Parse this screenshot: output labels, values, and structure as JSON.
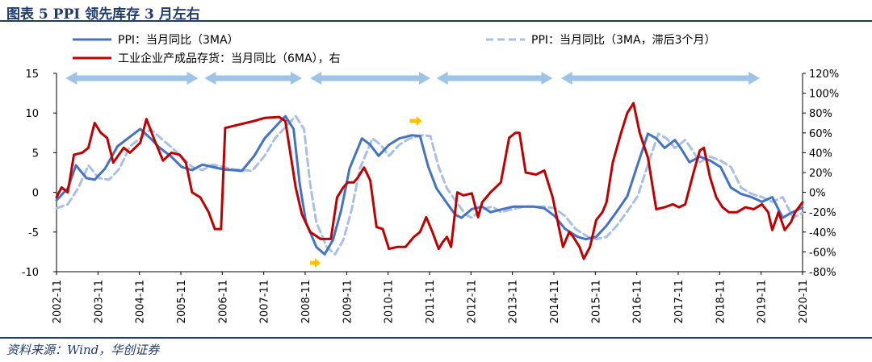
{
  "header": {
    "title": "图表 5   PPI 领先库存 3 月左右"
  },
  "footer": {
    "source": "资料来源：Wind，华创证券"
  },
  "chart_data": {
    "type": "line",
    "title": "PPI 领先库存 3 月左右",
    "x_tick_labels": [
      "2002-11",
      "2003-11",
      "2004-11",
      "2005-11",
      "2006-11",
      "2007-11",
      "2008-11",
      "2009-11",
      "2010-11",
      "2011-11",
      "2012-11",
      "2013-11",
      "2014-11",
      "2015-11",
      "2016-11",
      "2017-11",
      "2018-11",
      "2019-11",
      "2020-11"
    ],
    "x_range": [
      2002.83,
      2020.83
    ],
    "y_left": {
      "range": [
        -10,
        15
      ],
      "ticks": [
        "15",
        "10",
        "5",
        "0",
        "-5",
        "-10"
      ]
    },
    "y_right": {
      "range": [
        -80,
        120
      ],
      "ticks": [
        "120%",
        "100%",
        "80%",
        "60%",
        "40%",
        "20%",
        "0%",
        "-20%",
        "-40%",
        "-60%",
        "-80%"
      ]
    },
    "grid": false,
    "legend_position": "top",
    "series": [
      {
        "name": "PPI：当月同比（3MA）",
        "axis": "left",
        "style": "solid",
        "color": "#4472c4",
        "points": [
          [
            2002.83,
            -1.0
          ],
          [
            2003.1,
            0.5
          ],
          [
            2003.3,
            3.4
          ],
          [
            2003.55,
            1.8
          ],
          [
            2003.75,
            1.6
          ],
          [
            2004.0,
            3.0
          ],
          [
            2004.3,
            5.8
          ],
          [
            2004.6,
            7.0
          ],
          [
            2004.85,
            8.0
          ],
          [
            2005.1,
            6.8
          ],
          [
            2005.3,
            5.7
          ],
          [
            2005.6,
            4.5
          ],
          [
            2005.85,
            3.2
          ],
          [
            2006.1,
            2.8
          ],
          [
            2006.35,
            3.5
          ],
          [
            2006.6,
            3.2
          ],
          [
            2006.85,
            2.9
          ],
          [
            2007.1,
            2.8
          ],
          [
            2007.3,
            2.7
          ],
          [
            2007.6,
            4.6
          ],
          [
            2007.85,
            6.8
          ],
          [
            2008.15,
            8.5
          ],
          [
            2008.35,
            9.6
          ],
          [
            2008.55,
            8.0
          ],
          [
            2008.7,
            1.0
          ],
          [
            2008.85,
            -3.8
          ],
          [
            2009.1,
            -6.9
          ],
          [
            2009.3,
            -7.8
          ],
          [
            2009.5,
            -6.0
          ],
          [
            2009.7,
            -2.2
          ],
          [
            2009.9,
            3.0
          ],
          [
            2010.2,
            6.8
          ],
          [
            2010.4,
            6.0
          ],
          [
            2010.6,
            4.6
          ],
          [
            2010.85,
            6.0
          ],
          [
            2011.1,
            6.8
          ],
          [
            2011.4,
            7.2
          ],
          [
            2011.6,
            7.1
          ],
          [
            2011.8,
            3.2
          ],
          [
            2012.0,
            0.5
          ],
          [
            2012.2,
            -1.0
          ],
          [
            2012.45,
            -2.8
          ],
          [
            2012.6,
            -3.2
          ],
          [
            2012.85,
            -2.1
          ],
          [
            2013.1,
            -1.8
          ],
          [
            2013.3,
            -2.5
          ],
          [
            2013.6,
            -2.1
          ],
          [
            2013.85,
            -1.8
          ],
          [
            2014.1,
            -1.8
          ],
          [
            2014.35,
            -1.8
          ],
          [
            2014.6,
            -2.0
          ],
          [
            2014.85,
            -3.0
          ],
          [
            2015.1,
            -4.6
          ],
          [
            2015.4,
            -5.6
          ],
          [
            2015.6,
            -5.9
          ],
          [
            2015.85,
            -5.6
          ],
          [
            2016.1,
            -4.2
          ],
          [
            2016.35,
            -2.4
          ],
          [
            2016.6,
            -0.5
          ],
          [
            2016.85,
            3.5
          ],
          [
            2017.1,
            7.4
          ],
          [
            2017.3,
            6.8
          ],
          [
            2017.5,
            5.6
          ],
          [
            2017.75,
            6.6
          ],
          [
            2017.9,
            5.5
          ],
          [
            2018.1,
            3.8
          ],
          [
            2018.35,
            4.5
          ],
          [
            2018.6,
            4.0
          ],
          [
            2018.85,
            3.2
          ],
          [
            2019.1,
            0.6
          ],
          [
            2019.35,
            -0.2
          ],
          [
            2019.6,
            -0.6
          ],
          [
            2019.85,
            -1.2
          ],
          [
            2020.1,
            -0.6
          ],
          [
            2020.35,
            -3.2
          ],
          [
            2020.55,
            -2.6
          ],
          [
            2020.83,
            -1.9
          ]
        ]
      },
      {
        "name": "PPI：当月同比（3MA，滞后3个月）",
        "axis": "left",
        "style": "dashed",
        "color": "#a9bfe3",
        "points": [
          [
            2002.83,
            -2.0
          ],
          [
            2003.1,
            -1.5
          ],
          [
            2003.35,
            0.5
          ],
          [
            2003.6,
            3.4
          ],
          [
            2003.85,
            1.8
          ],
          [
            2004.1,
            1.6
          ],
          [
            2004.35,
            3.0
          ],
          [
            2004.6,
            5.8
          ],
          [
            2004.9,
            7.0
          ],
          [
            2005.1,
            8.0
          ],
          [
            2005.35,
            6.8
          ],
          [
            2005.6,
            5.7
          ],
          [
            2005.85,
            4.5
          ],
          [
            2006.1,
            3.2
          ],
          [
            2006.35,
            2.8
          ],
          [
            2006.6,
            3.5
          ],
          [
            2006.85,
            3.2
          ],
          [
            2007.1,
            2.9
          ],
          [
            2007.35,
            2.8
          ],
          [
            2007.55,
            2.7
          ],
          [
            2007.85,
            4.6
          ],
          [
            2008.1,
            6.8
          ],
          [
            2008.4,
            8.5
          ],
          [
            2008.6,
            9.6
          ],
          [
            2008.8,
            8.0
          ],
          [
            2008.95,
            1.0
          ],
          [
            2009.1,
            -3.8
          ],
          [
            2009.35,
            -6.9
          ],
          [
            2009.55,
            -7.8
          ],
          [
            2009.75,
            -6.0
          ],
          [
            2009.95,
            -2.2
          ],
          [
            2010.15,
            3.0
          ],
          [
            2010.45,
            6.8
          ],
          [
            2010.65,
            6.0
          ],
          [
            2010.85,
            4.6
          ],
          [
            2011.1,
            6.0
          ],
          [
            2011.35,
            6.8
          ],
          [
            2011.65,
            7.2
          ],
          [
            2011.85,
            7.1
          ],
          [
            2012.05,
            3.2
          ],
          [
            2012.25,
            0.5
          ],
          [
            2012.45,
            -1.0
          ],
          [
            2012.7,
            -2.8
          ],
          [
            2012.85,
            -3.2
          ],
          [
            2013.1,
            -2.1
          ],
          [
            2013.35,
            -1.8
          ],
          [
            2013.55,
            -2.5
          ],
          [
            2013.85,
            -2.1
          ],
          [
            2014.1,
            -1.8
          ],
          [
            2014.35,
            -1.8
          ],
          [
            2014.6,
            -1.8
          ],
          [
            2014.85,
            -2.0
          ],
          [
            2015.1,
            -3.0
          ],
          [
            2015.35,
            -4.6
          ],
          [
            2015.65,
            -5.6
          ],
          [
            2015.85,
            -5.9
          ],
          [
            2016.1,
            -5.6
          ],
          [
            2016.35,
            -4.2
          ],
          [
            2016.6,
            -2.4
          ],
          [
            2016.85,
            -0.5
          ],
          [
            2017.1,
            3.5
          ],
          [
            2017.35,
            7.4
          ],
          [
            2017.55,
            6.8
          ],
          [
            2017.75,
            5.6
          ],
          [
            2018.0,
            6.6
          ],
          [
            2018.15,
            5.5
          ],
          [
            2018.35,
            3.8
          ],
          [
            2018.6,
            4.5
          ],
          [
            2018.85,
            4.0
          ],
          [
            2019.1,
            3.2
          ],
          [
            2019.35,
            0.6
          ],
          [
            2019.6,
            -0.2
          ],
          [
            2019.85,
            -0.6
          ],
          [
            2020.1,
            -1.2
          ],
          [
            2020.35,
            -0.6
          ],
          [
            2020.6,
            -3.2
          ],
          [
            2020.83,
            -2.6
          ]
        ]
      },
      {
        "name": "工业企业产成品存货：当月同比（6MA），右",
        "axis": "right",
        "style": "solid",
        "color": "#c00000",
        "points": [
          [
            2002.83,
            -5
          ],
          [
            2002.95,
            5
          ],
          [
            2003.1,
            0
          ],
          [
            2003.25,
            38
          ],
          [
            2003.45,
            40
          ],
          [
            2003.6,
            45
          ],
          [
            2003.75,
            70
          ],
          [
            2003.9,
            60
          ],
          [
            2004.05,
            55
          ],
          [
            2004.2,
            30
          ],
          [
            2004.45,
            45
          ],
          [
            2004.6,
            40
          ],
          [
            2004.85,
            50
          ],
          [
            2005.0,
            74
          ],
          [
            2005.2,
            52
          ],
          [
            2005.4,
            32
          ],
          [
            2005.6,
            40
          ],
          [
            2005.8,
            38
          ],
          [
            2005.95,
            30
          ],
          [
            2006.1,
            0
          ],
          [
            2006.3,
            -5
          ],
          [
            2006.5,
            -20
          ],
          [
            2006.65,
            -37
          ],
          [
            2006.8,
            -37
          ],
          [
            2006.9,
            65
          ],
          [
            2007.6,
            72
          ],
          [
            2007.85,
            75
          ],
          [
            2008.2,
            76
          ],
          [
            2008.35,
            72
          ],
          [
            2008.6,
            5
          ],
          [
            2008.75,
            -22
          ],
          [
            2008.95,
            -40
          ],
          [
            2009.2,
            -47
          ],
          [
            2009.45,
            -47
          ],
          [
            2009.6,
            -5
          ],
          [
            2009.75,
            5
          ],
          [
            2009.85,
            10
          ],
          [
            2010.0,
            10
          ],
          [
            2010.1,
            15
          ],
          [
            2010.25,
            25
          ],
          [
            2010.4,
            12
          ],
          [
            2010.55,
            -35
          ],
          [
            2010.7,
            -37
          ],
          [
            2010.85,
            -57
          ],
          [
            2011.05,
            -55
          ],
          [
            2011.25,
            -55
          ],
          [
            2011.45,
            -45
          ],
          [
            2011.6,
            -40
          ],
          [
            2011.75,
            -25
          ],
          [
            2011.9,
            -40
          ],
          [
            2012.05,
            -57
          ],
          [
            2012.15,
            -50
          ],
          [
            2012.25,
            -45
          ],
          [
            2012.35,
            -55
          ],
          [
            2012.5,
            0
          ],
          [
            2012.65,
            -3
          ],
          [
            2012.85,
            -1
          ],
          [
            2013.0,
            -25
          ],
          [
            2013.1,
            -10
          ],
          [
            2013.3,
            0
          ],
          [
            2013.55,
            10
          ],
          [
            2013.75,
            55
          ],
          [
            2013.9,
            60
          ],
          [
            2014.0,
            60
          ],
          [
            2014.15,
            20
          ],
          [
            2014.4,
            18
          ],
          [
            2014.6,
            22
          ],
          [
            2014.8,
            -5
          ],
          [
            2014.9,
            -25
          ],
          [
            2015.05,
            -55
          ],
          [
            2015.2,
            -40
          ],
          [
            2015.3,
            -45
          ],
          [
            2015.45,
            -55
          ],
          [
            2015.55,
            -67
          ],
          [
            2015.7,
            -55
          ],
          [
            2015.85,
            -28
          ],
          [
            2016.0,
            -20
          ],
          [
            2016.1,
            -10
          ],
          [
            2016.25,
            30
          ],
          [
            2016.45,
            60
          ],
          [
            2016.6,
            80
          ],
          [
            2016.75,
            90
          ],
          [
            2016.9,
            60
          ],
          [
            2017.1,
            35
          ],
          [
            2017.3,
            -17
          ],
          [
            2017.5,
            -15
          ],
          [
            2017.7,
            -12
          ],
          [
            2017.85,
            -15
          ],
          [
            2018.0,
            -12
          ],
          [
            2018.2,
            20
          ],
          [
            2018.35,
            42
          ],
          [
            2018.45,
            45
          ],
          [
            2018.6,
            15
          ],
          [
            2018.75,
            -5
          ],
          [
            2018.9,
            -15
          ],
          [
            2019.05,
            -20
          ],
          [
            2019.25,
            -20
          ],
          [
            2019.45,
            -15
          ],
          [
            2019.65,
            -17
          ],
          [
            2019.85,
            -12
          ],
          [
            2020.0,
            -20
          ],
          [
            2020.1,
            -38
          ],
          [
            2020.25,
            -20
          ],
          [
            2020.4,
            -38
          ],
          [
            2020.55,
            -30
          ],
          [
            2020.65,
            -20
          ],
          [
            2020.83,
            -10
          ]
        ]
      }
    ],
    "decorations": {
      "period_arrows": [
        [
          2003.05,
          2006.25
        ],
        [
          2006.4,
          2008.75
        ],
        [
          2008.95,
          2011.85
        ],
        [
          2012.0,
          2014.8
        ],
        [
          2015.0,
          2019.8
        ]
      ],
      "period_arrow_color": "#9dc3e6",
      "lag_arrows": [
        [
          2008.95,
          2009.2,
          -8.9
        ],
        [
          2011.35,
          2011.65,
          9.0
        ]
      ],
      "lag_arrow_color": "#ffc000"
    }
  }
}
